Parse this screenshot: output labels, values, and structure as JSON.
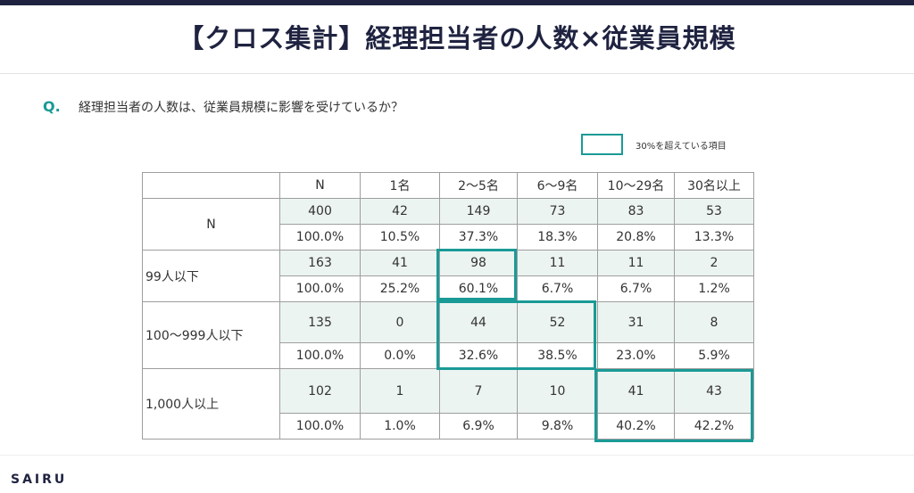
{
  "header": {
    "title": "【クロス集計】経理担当者の人数×従業員規模",
    "accent_color": "#1f2340"
  },
  "question": {
    "mark": "Q.",
    "text": "経理担当者の人数は、従業員規模に影響を受けているか？",
    "mark_color": "#1a9a96"
  },
  "legend": {
    "label": "30%を超えている項目",
    "box_color": "#1a9a96"
  },
  "table": {
    "columns": [
      "N",
      "1名",
      "2～5名",
      "6～9名",
      "10～29名",
      "30名以上"
    ],
    "rows": [
      {
        "label": "N",
        "counts": [
          "400",
          "42",
          "149",
          "73",
          "83",
          "53"
        ],
        "percents": [
          "100.0%",
          "10.5%",
          "37.3%",
          "18.3%",
          "20.8%",
          "13.3%"
        ]
      },
      {
        "label": "99人以下",
        "counts": [
          "163",
          "41",
          "98",
          "11",
          "11",
          "2"
        ],
        "percents": [
          "100.0%",
          "25.2%",
          "60.1%",
          "6.7%",
          "6.7%",
          "1.2%"
        ]
      },
      {
        "label": "100～999人以下",
        "counts": [
          "135",
          "0",
          "44",
          "52",
          "31",
          "8"
        ],
        "percents": [
          "100.0%",
          "0.0%",
          "32.6%",
          "38.5%",
          "23.0%",
          "5.9%"
        ]
      },
      {
        "label": "1,000人以上",
        "counts": [
          "102",
          "1",
          "7",
          "10",
          "41",
          "43"
        ],
        "percents": [
          "100.0%",
          "1.0%",
          "6.9%",
          "9.8%",
          "40.2%",
          "42.2%"
        ]
      }
    ],
    "count_row_color": "#ecf4f1",
    "highlight_color": "#1a9a96"
  },
  "footer": {
    "logo": "SAIRU"
  }
}
